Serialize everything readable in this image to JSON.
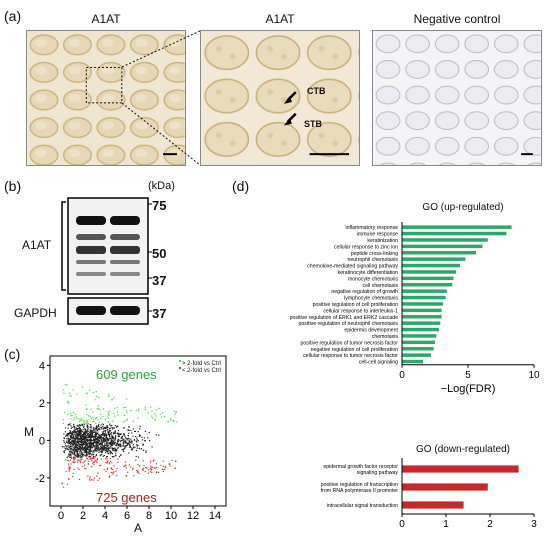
{
  "panels": {
    "a": "(a)",
    "b": "(b)",
    "c": "(c)",
    "d": "(d)"
  },
  "panel_a": {
    "titles": [
      "A1AT",
      "A1AT",
      "Negative control"
    ],
    "labels": {
      "ctb": "CTB",
      "stb": "STB"
    }
  },
  "panel_b": {
    "kda_label": "(kDa)",
    "markers": [
      "75",
      "50",
      "37"
    ],
    "row_labels": [
      "A1AT",
      "GAPDH"
    ],
    "gapdh_marker": "37"
  },
  "panel_c": {
    "legend": [
      "> 2-fold vs Ctrl",
      "< 2-fold vs Ctrl"
    ],
    "up_label": "609 genes",
    "down_label": "725 genes",
    "xlabel": "A",
    "ylabel": "M",
    "colors": {
      "up": "#44d944",
      "down": "#e03030",
      "neutral": "#222222"
    }
  },
  "panel_d": {
    "up_title": "GO (up-regulated)",
    "down_title": "GO (down-regulated)"
  },
  "chart_data": [
    {
      "type": "scatter",
      "title": "",
      "xlabel": "A",
      "ylabel": "M",
      "xlim": [
        -1,
        15
      ],
      "ylim": [
        -3.5,
        4.5
      ],
      "x_ticks": [
        "0",
        "2",
        "4",
        "6",
        "8",
        "10",
        "12",
        "14"
      ],
      "y_ticks": [
        "4",
        "2",
        "0",
        "-2"
      ],
      "series": [
        {
          "name": "> 2-fold vs Ctrl",
          "count_label": "609 genes"
        },
        {
          "name": "< 2-fold vs Ctrl",
          "count_label": "725 genes"
        }
      ]
    },
    {
      "type": "bar",
      "orientation": "horizontal",
      "title": "GO (up-regulated)",
      "xlabel": "−Log(FDR)",
      "xlim": [
        0,
        10
      ],
      "x_ticks": [
        "0",
        "5",
        "10"
      ],
      "categories": [
        "inflammatory response",
        "immune response",
        "keratinization",
        "cellular response to zinc ion",
        "peptide cross-linking",
        "neutrophil chemotaxis",
        "chemokine-mediated signaling pathway",
        "keratinocyte differentiation",
        "monocyte chemotaxis",
        "cell chemotaxis",
        "negative regulation of growth",
        "lymphocyte chemotaxis",
        "positive regulation of cell proliferation",
        "cellular response to interleukin-1",
        "positive regulation of ERK1 and ERK2 cascade",
        "positive regulation of neutrophil chemotaxis",
        "epidermis development",
        "chemotaxis",
        "positive regulation of tumor necrosis factor",
        "negative regulation of cell proliferation",
        "cellular response to tumor necrosis factor",
        "cell-cell signaling"
      ],
      "values": [
        8.3,
        7.9,
        6.5,
        6.1,
        5.6,
        4.8,
        4.4,
        4.1,
        3.9,
        3.8,
        3.4,
        3.3,
        3.1,
        3.0,
        3.0,
        2.9,
        2.8,
        2.6,
        2.5,
        2.4,
        2.2,
        1.6
      ],
      "color": "#2ea86a"
    },
    {
      "type": "bar",
      "orientation": "horizontal",
      "title": "GO (down-regulated)",
      "xlabel": "−Log(FDR)",
      "xlim": [
        0,
        3
      ],
      "x_ticks": [
        "0",
        "1",
        "2",
        "3"
      ],
      "categories": [
        "epidermal growth factor receptor signaling pathway",
        "positive regulation of transcription from RNA polymerase II promoter",
        "intracellular signal transduction"
      ],
      "values": [
        2.65,
        1.95,
        1.4
      ],
      "color": "#c8282a"
    }
  ]
}
